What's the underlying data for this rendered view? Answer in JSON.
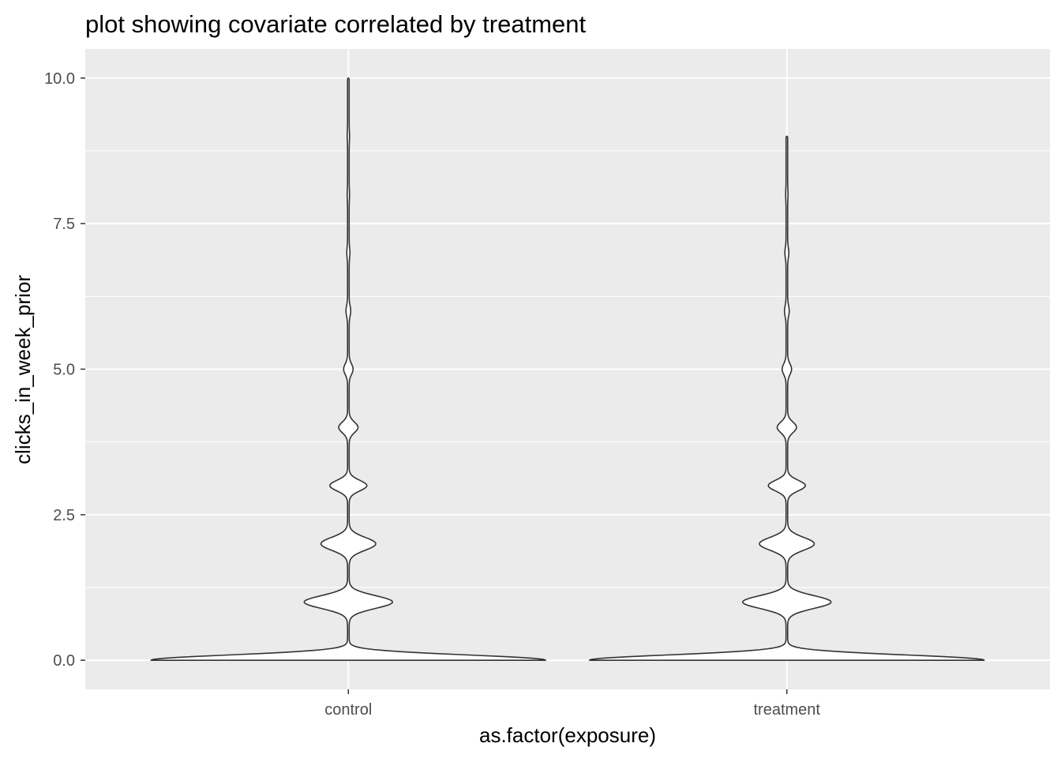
{
  "chart_data": {
    "type": "violin",
    "title": "plot showing covariate correlated by treatment",
    "xlabel": "as.factor(exposure)",
    "ylabel": "clicks_in_week_prior",
    "categories": [
      "control",
      "treatment"
    ],
    "ylim": [
      -0.5,
      10.5
    ],
    "y_ticks": [
      0.0,
      2.5,
      5.0,
      7.5,
      10.0
    ],
    "y_tick_labels": [
      "0.0",
      "2.5",
      "5.0",
      "7.5",
      "10.0"
    ],
    "grid": true,
    "legend": "none",
    "colors": {
      "panel": "#EBEBEB",
      "grid": "#FFFFFF",
      "violin_fill": "#FFFFFF",
      "violin_line": "#333333",
      "tick_label": "#4D4D4D",
      "text": "#000000"
    },
    "series": [
      {
        "category": "control",
        "y_min": 0,
        "y_max": 10,
        "density_profile": [
          {
            "y": 0.0,
            "w": 1.0
          },
          {
            "y": 1.0,
            "w": 0.22
          },
          {
            "y": 2.0,
            "w": 0.135
          },
          {
            "y": 3.0,
            "w": 0.09
          },
          {
            "y": 4.0,
            "w": 0.045
          },
          {
            "y": 5.0,
            "w": 0.02
          },
          {
            "y": 6.0,
            "w": 0.008
          },
          {
            "y": 7.0,
            "w": 0.004
          },
          {
            "y": 8.0,
            "w": 0.002
          },
          {
            "y": 9.0,
            "w": 0.002
          },
          {
            "y": 10.0,
            "w": 0.0
          }
        ]
      },
      {
        "category": "treatment",
        "y_min": 0,
        "y_max": 9,
        "density_profile": [
          {
            "y": 0.0,
            "w": 1.0
          },
          {
            "y": 1.0,
            "w": 0.22
          },
          {
            "y": 2.0,
            "w": 0.135
          },
          {
            "y": 3.0,
            "w": 0.09
          },
          {
            "y": 4.0,
            "w": 0.045
          },
          {
            "y": 5.0,
            "w": 0.02
          },
          {
            "y": 6.0,
            "w": 0.008
          },
          {
            "y": 7.0,
            "w": 0.006
          },
          {
            "y": 8.0,
            "w": 0.002
          },
          {
            "y": 9.0,
            "w": 0.0
          }
        ]
      }
    ]
  }
}
